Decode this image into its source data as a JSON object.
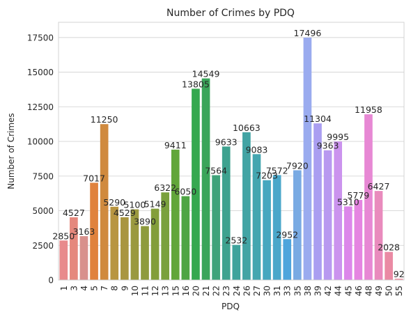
{
  "chart_data": {
    "type": "bar",
    "title": "Number of Crimes by PDQ",
    "xlabel": "PDQ",
    "ylabel": "Number of Crimes",
    "ylim": [
      0,
      18600
    ],
    "yticks": [
      0,
      2500,
      5000,
      7500,
      10000,
      12500,
      15000,
      17500
    ],
    "grid": "horizontal",
    "categories": [
      "1",
      "3",
      "4",
      "5",
      "7",
      "8",
      "9",
      "10",
      "11",
      "12",
      "13",
      "15",
      "16",
      "20",
      "21",
      "22",
      "23",
      "24",
      "26",
      "27",
      "30",
      "31",
      "33",
      "35",
      "38",
      "39",
      "42",
      "44",
      "45",
      "46",
      "48",
      "49",
      "50",
      "55"
    ],
    "values": [
      2850,
      4527,
      3163,
      7017,
      11250,
      5290,
      4529,
      5100,
      3890,
      5149,
      6322,
      9411,
      6050,
      13805,
      14549,
      7564,
      9633,
      2532,
      10663,
      9083,
      7203,
      7572,
      2952,
      7920,
      17496,
      11304,
      9363,
      9995,
      5310,
      5779,
      11958,
      6427,
      2028,
      92
    ],
    "colors": [
      "#e88a8c",
      "#e5887d",
      "#d8908c",
      "#e0823d",
      "#d08a3e",
      "#b89540",
      "#a99640",
      "#9a993f",
      "#8e9b3d",
      "#839e3a",
      "#7aa13d",
      "#62a63a",
      "#4ea544",
      "#35a84f",
      "#3aa55a",
      "#3fa37a",
      "#3ea28f",
      "#3fa39c",
      "#42a4a4",
      "#44a6b0",
      "#46a7bf",
      "#4aa7ca",
      "#4ea5dc",
      "#79aae3",
      "#9aabef",
      "#aa9ef1",
      "#b899f0",
      "#cb93ee",
      "#dc87ea",
      "#e585e1",
      "#e788d4",
      "#e98bbd",
      "#ea8aa4",
      "#ec8a9b"
    ]
  }
}
